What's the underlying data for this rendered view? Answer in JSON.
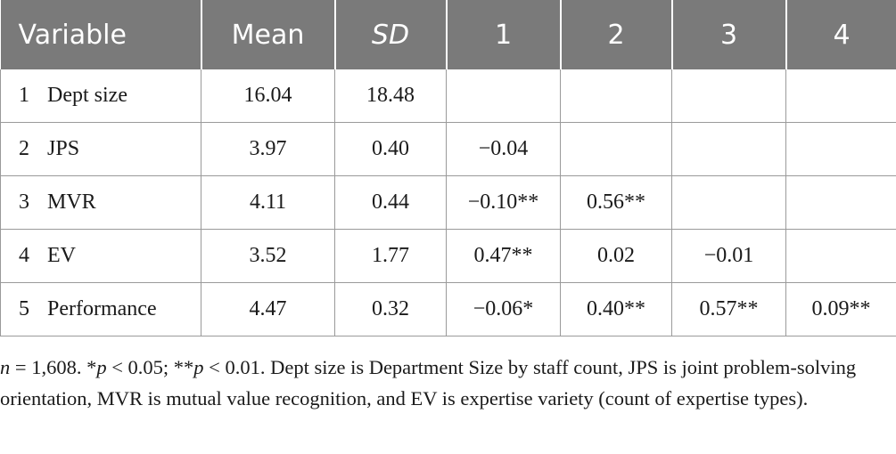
{
  "table": {
    "headers": [
      "Variable",
      "Mean",
      "SD",
      "1",
      "2",
      "3",
      "4"
    ],
    "rows": [
      {
        "index": "1",
        "variable": "Dept size",
        "mean": "16.04",
        "sd": "18.48",
        "c1": "",
        "c2": "",
        "c3": "",
        "c4": ""
      },
      {
        "index": "2",
        "variable": "JPS",
        "mean": "3.97",
        "sd": "0.40",
        "c1": "−0.04",
        "c2": "",
        "c3": "",
        "c4": ""
      },
      {
        "index": "3",
        "variable": "MVR",
        "mean": "4.11",
        "sd": "0.44",
        "c1": "−0.10**",
        "c2": "0.56**",
        "c3": "",
        "c4": ""
      },
      {
        "index": "4",
        "variable": "EV",
        "mean": "3.52",
        "sd": "1.77",
        "c1": "0.47**",
        "c2": "0.02",
        "c3": "−0.01",
        "c4": ""
      },
      {
        "index": "5",
        "variable": "Performance",
        "mean": "4.47",
        "sd": "0.32",
        "c1": "−0.06*",
        "c2": "0.40**",
        "c3": "0.57**",
        "c4": "0.09**"
      }
    ]
  },
  "note": {
    "n": "n",
    "n_value": " = 1,608. *",
    "p1": "p",
    "p1_value": " < 0.05; **",
    "p2": "p",
    "rest": " < 0.01. Dept size is Department Size by staff count, JPS is joint problem-solving orientation, MVR is mutual value recognition, and EV is expertise variety (count of expertise types)."
  }
}
